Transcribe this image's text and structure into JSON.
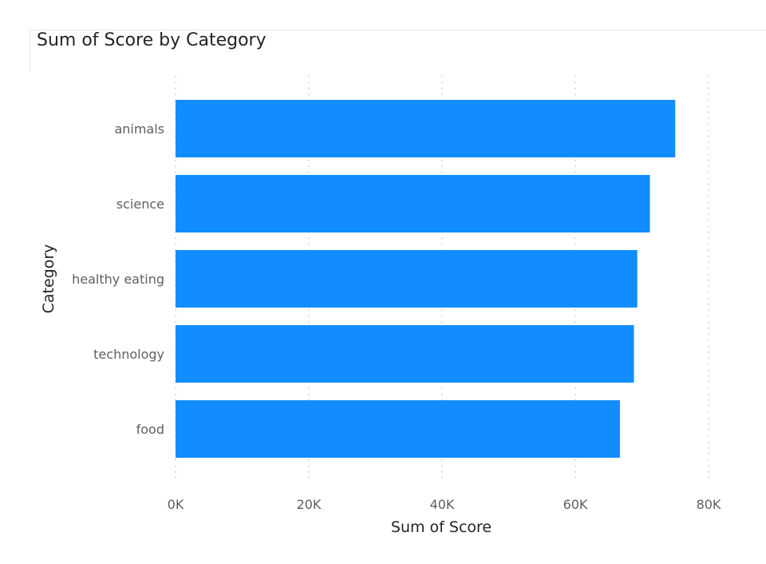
{
  "chart_data": {
    "type": "bar",
    "orientation": "horizontal",
    "title": "Sum of Score by Category",
    "xlabel": "Sum of Score",
    "ylabel": "Category",
    "categories": [
      "animals",
      "science",
      "healthy eating",
      "technology",
      "food"
    ],
    "values": [
      75000,
      71200,
      69300,
      68800,
      66700
    ],
    "xlim": [
      0,
      80000
    ],
    "xticks": [
      0,
      20000,
      40000,
      60000,
      80000
    ],
    "xtick_labels": [
      "0K",
      "20K",
      "40K",
      "60K",
      "80K"
    ],
    "grid": "vertical dotted",
    "bar_color": "#118DFF"
  }
}
